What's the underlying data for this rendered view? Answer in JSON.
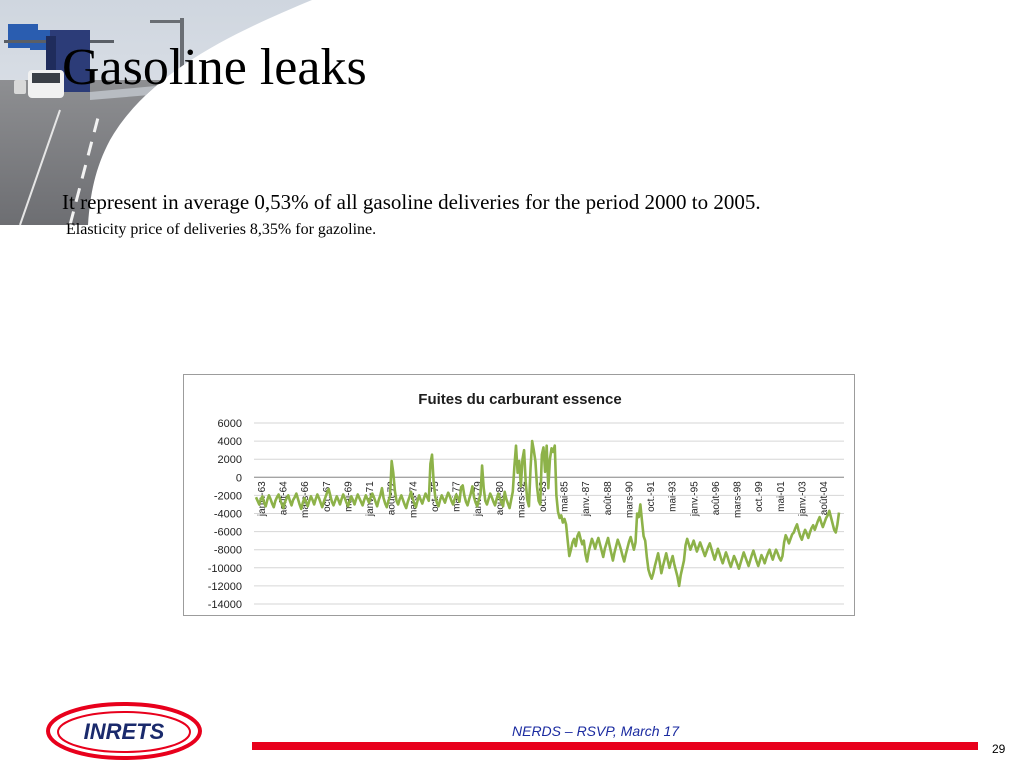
{
  "slide": {
    "title": "Gasoline leaks",
    "line1": "It represent in average  0,53%  of all gasoline deliveries for the period 2000 to 2005.",
    "line2": "Elasticity price of deliveries  8,35% for gazoline."
  },
  "footer": {
    "text": "NERDS – RSVP, March 17",
    "page_number": "29",
    "logo_text": "INRETS",
    "bar_color": "#e8001c"
  },
  "chart_data": {
    "type": "line",
    "title": "Fuites du carburant  essence",
    "ylim": [
      -14000,
      6000
    ],
    "yticks": [
      "6000",
      "4000",
      "2000",
      "0",
      "-2000",
      "-4000",
      "-6000",
      "-8000",
      "-10000",
      "-12000",
      "-14000"
    ],
    "xtick_labels": [
      "janv.-63",
      "août-64",
      "mars-66",
      "oct.-67",
      "mai-69",
      "janv.-71",
      "août-72",
      "mars-74",
      "oct.-75",
      "mai-77",
      "janv.-79",
      "août-80",
      "mars-82",
      "oct.-83",
      "mai-85",
      "janv.-87",
      "août-88",
      "mars-90",
      "oct.-91",
      "mai-93",
      "janv.-95",
      "août-96",
      "mars-98",
      "oct.-99",
      "mai-01",
      "janv.-03",
      "août-04"
    ],
    "line_color": "#8db249",
    "series": [
      {
        "values": [
          -2200,
          -2600,
          -3000,
          -2400,
          -2100,
          -2800,
          -3200,
          -2500,
          -2000,
          -2400,
          -2900,
          -3300,
          -2600,
          -2200,
          -1900,
          -2500,
          -3000,
          -3400,
          -2700,
          -2300,
          -2000,
          -2600,
          -3100,
          -2500,
          -2200,
          -1800,
          -2400,
          -3000,
          -3500,
          -2800,
          -2300,
          -2700,
          -3200,
          -2600,
          -2100,
          -2500,
          -3000,
          -2400,
          -1900,
          -2300,
          -2800,
          -3300,
          -2700,
          -2200,
          -1700,
          -1300,
          -2000,
          -2700,
          -3100,
          -2600,
          -2100,
          -2500,
          -3000,
          -2400,
          -1900,
          -2300,
          -2800,
          -3200,
          -2600,
          -2100,
          -2500,
          -3000,
          -2400,
          -1900,
          -2300,
          -2700,
          -3100,
          -2500,
          -2000,
          -2400,
          -2800,
          -2200,
          -1800,
          -2200,
          -2700,
          -3200,
          -2500,
          -2000,
          -1200,
          -2300,
          -2900,
          -3300,
          -2600,
          -2100,
          1800,
          500,
          -1500,
          -2600,
          -3000,
          -2400,
          -2000,
          -2500,
          -3000,
          -3400,
          -2700,
          -2200,
          -1600,
          -2300,
          -2900,
          -3300,
          -2600,
          -2000,
          -2500,
          -2900,
          -2300,
          -1800,
          -2200,
          -2600,
          1500,
          2500,
          -500,
          -2200,
          -2800,
          -3200,
          -2500,
          -2000,
          -2400,
          -2800,
          -2200,
          -1700,
          -2100,
          -2600,
          -3000,
          -2400,
          -1900,
          -2300,
          -2700,
          -1100,
          -900,
          -2000,
          -2700,
          -3100,
          -2400,
          -1800,
          -1000,
          -2200,
          -2800,
          -3200,
          -2500,
          -1900,
          1300,
          -1200,
          -2600,
          -3000,
          -2400,
          -1800,
          -2200,
          -2700,
          -3100,
          -2400,
          -1800,
          -2300,
          -2800,
          -3200,
          -1600,
          -2400,
          -2900,
          -3400,
          -2500,
          -1600,
          1200,
          3500,
          500,
          1800,
          -1000,
          2000,
          3000,
          -500,
          -2500,
          -3200,
          1000,
          4000,
          3000,
          1800,
          -1000,
          -2600,
          -3000,
          2500,
          3300,
          600,
          3500,
          -1200,
          2000,
          3200,
          2800,
          3500,
          -2000,
          -3800,
          -4500,
          -4200,
          -5000,
          -4600,
          -5200,
          -7000,
          -8700,
          -8000,
          -7200,
          -6800,
          -7600,
          -6500,
          -6100,
          -6800,
          -7400,
          -7000,
          -8500,
          -9300,
          -8200,
          -7500,
          -6800,
          -7300,
          -7900,
          -7200,
          -6700,
          -7400,
          -8100,
          -8800,
          -7900,
          -7300,
          -6700,
          -7600,
          -8400,
          -9200,
          -8300,
          -7600,
          -6900,
          -7400,
          -8000,
          -8700,
          -9300,
          -8500,
          -7800,
          -7100,
          -6600,
          -7300,
          -8000,
          -7200,
          -4000,
          -4400,
          -3000,
          -4800,
          -6500,
          -7000,
          -8800,
          -10200,
          -10800,
          -11200,
          -10600,
          -9800,
          -9100,
          -8400,
          -9400,
          -10600,
          -9800,
          -9100,
          -8400,
          -9200,
          -10000,
          -9300,
          -8700,
          -9600,
          -10300,
          -11000,
          -12000,
          -10800,
          -10000,
          -9200,
          -7500,
          -6800,
          -7400,
          -8000,
          -7500,
          -7000,
          -7600,
          -8200,
          -7700,
          -7200,
          -7700,
          -8200,
          -8700,
          -8200,
          -7700,
          -7300,
          -7900,
          -8500,
          -9100,
          -8500,
          -7900,
          -8400,
          -9000,
          -9500,
          -8900,
          -8300,
          -8800,
          -9400,
          -9900,
          -9300,
          -8700,
          -9100,
          -9600,
          -10100,
          -9500,
          -8900,
          -8300,
          -8800,
          -9300,
          -9800,
          -9200,
          -8600,
          -8100,
          -8700,
          -9300,
          -9800,
          -9200,
          -8600,
          -9000,
          -9500,
          -8900,
          -8400,
          -8000,
          -8600,
          -9100,
          -8500,
          -8000,
          -8400,
          -8900,
          -9200,
          -8700,
          -7200,
          -6400,
          -6800,
          -7300,
          -6800,
          -6300,
          -6100,
          -5600,
          -5200,
          -5900,
          -6500,
          -6900,
          -6300,
          -5800,
          -6200,
          -6700,
          -6100,
          -5600,
          -5300,
          -5800,
          -5300,
          -4800,
          -4400,
          -5000,
          -5500,
          -5000,
          -4500,
          -4200,
          -3700,
          -4400,
          -5100,
          -5800,
          -6100,
          -5200,
          -3900
        ]
      }
    ]
  }
}
